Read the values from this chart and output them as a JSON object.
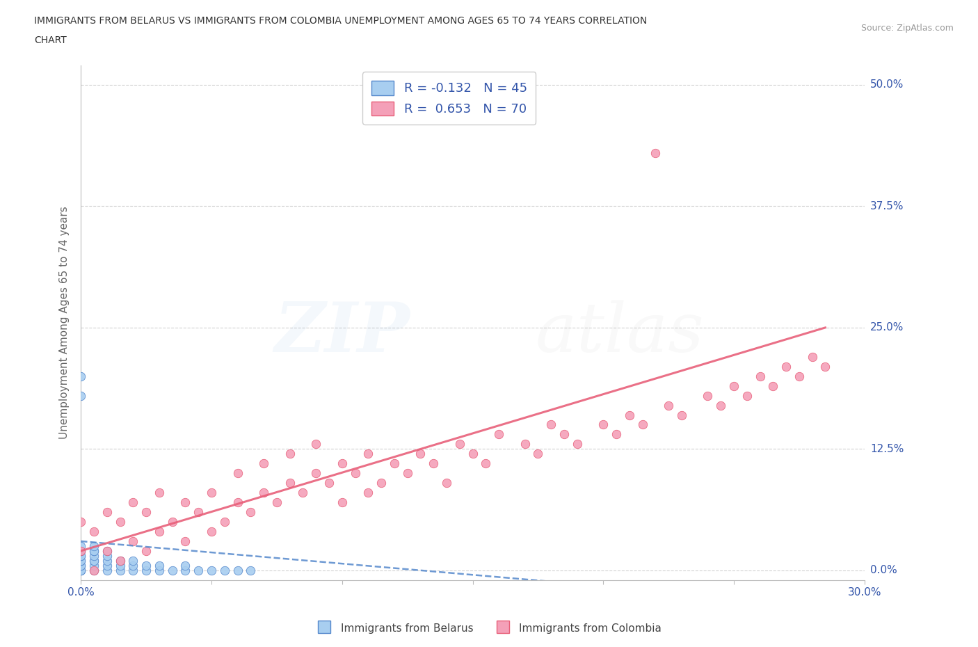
{
  "title_line1": "IMMIGRANTS FROM BELARUS VS IMMIGRANTS FROM COLOMBIA UNEMPLOYMENT AMONG AGES 65 TO 74 YEARS CORRELATION",
  "title_line2": "CHART",
  "source_text": "Source: ZipAtlas.com",
  "ylabel": "Unemployment Among Ages 65 to 74 years",
  "xlim": [
    0.0,
    0.3
  ],
  "ylim": [
    -0.01,
    0.52
  ],
  "ytick_labels": [
    "0.0%",
    "12.5%",
    "25.0%",
    "37.5%",
    "50.0%"
  ],
  "ytick_positions": [
    0.0,
    0.125,
    0.25,
    0.375,
    0.5
  ],
  "xtick_labels": [
    "0.0%",
    "",
    "",
    "",
    "",
    "",
    "30.0%"
  ],
  "xtick_positions": [
    0.0,
    0.05,
    0.1,
    0.15,
    0.2,
    0.25,
    0.3
  ],
  "grid_color": "#cccccc",
  "background_color": "#ffffff",
  "belarus_color": "#a8cef0",
  "colombia_color": "#f4a0b8",
  "belarus_line_color": "#5588cc",
  "colombia_line_color": "#e8607a",
  "R_belarus": -0.132,
  "N_belarus": 45,
  "R_colombia": 0.653,
  "N_colombia": 70,
  "legend_label_belarus": "Immigrants from Belarus",
  "legend_label_colombia": "Immigrants from Colombia",
  "stat_color": "#3355aa",
  "belarus_scatter_x": [
    0.0,
    0.0,
    0.0,
    0.0,
    0.0,
    0.0,
    0.0,
    0.0,
    0.0,
    0.0,
    0.0,
    0.0,
    0.0,
    0.0,
    0.005,
    0.005,
    0.005,
    0.005,
    0.005,
    0.005,
    0.005,
    0.005,
    0.01,
    0.01,
    0.01,
    0.01,
    0.01,
    0.015,
    0.015,
    0.015,
    0.02,
    0.02,
    0.02,
    0.025,
    0.025,
    0.03,
    0.03,
    0.035,
    0.04,
    0.04,
    0.045,
    0.05,
    0.055,
    0.06,
    0.065
  ],
  "belarus_scatter_y": [
    0.0,
    0.0,
    0.0,
    0.005,
    0.005,
    0.01,
    0.01,
    0.015,
    0.015,
    0.02,
    0.02,
    0.025,
    0.18,
    0.2,
    0.0,
    0.005,
    0.01,
    0.01,
    0.015,
    0.02,
    0.02,
    0.025,
    0.0,
    0.005,
    0.01,
    0.015,
    0.02,
    0.0,
    0.005,
    0.01,
    0.0,
    0.005,
    0.01,
    0.0,
    0.005,
    0.0,
    0.005,
    0.0,
    0.0,
    0.005,
    0.0,
    0.0,
    0.0,
    0.0,
    0.0
  ],
  "colombia_scatter_x": [
    0.0,
    0.0,
    0.005,
    0.005,
    0.01,
    0.01,
    0.015,
    0.015,
    0.02,
    0.02,
    0.025,
    0.025,
    0.03,
    0.03,
    0.035,
    0.04,
    0.04,
    0.045,
    0.05,
    0.05,
    0.055,
    0.06,
    0.06,
    0.065,
    0.07,
    0.07,
    0.075,
    0.08,
    0.08,
    0.085,
    0.09,
    0.09,
    0.095,
    0.1,
    0.1,
    0.105,
    0.11,
    0.11,
    0.115,
    0.12,
    0.125,
    0.13,
    0.135,
    0.14,
    0.145,
    0.15,
    0.155,
    0.16,
    0.17,
    0.175,
    0.18,
    0.185,
    0.19,
    0.2,
    0.205,
    0.21,
    0.215,
    0.22,
    0.225,
    0.23,
    0.24,
    0.245,
    0.25,
    0.255,
    0.26,
    0.265,
    0.27,
    0.275,
    0.28,
    0.285
  ],
  "colombia_scatter_y": [
    0.02,
    0.05,
    0.0,
    0.04,
    0.02,
    0.06,
    0.01,
    0.05,
    0.03,
    0.07,
    0.02,
    0.06,
    0.04,
    0.08,
    0.05,
    0.03,
    0.07,
    0.06,
    0.04,
    0.08,
    0.05,
    0.07,
    0.1,
    0.06,
    0.08,
    0.11,
    0.07,
    0.09,
    0.12,
    0.08,
    0.1,
    0.13,
    0.09,
    0.07,
    0.11,
    0.1,
    0.08,
    0.12,
    0.09,
    0.11,
    0.1,
    0.12,
    0.11,
    0.09,
    0.13,
    0.12,
    0.11,
    0.14,
    0.13,
    0.12,
    0.15,
    0.14,
    0.13,
    0.15,
    0.14,
    0.16,
    0.15,
    0.43,
    0.17,
    0.16,
    0.18,
    0.17,
    0.19,
    0.18,
    0.2,
    0.19,
    0.21,
    0.2,
    0.22,
    0.21
  ],
  "belarus_line_x": [
    0.0,
    0.065
  ],
  "belarus_line_y": [
    0.03,
    0.015
  ],
  "colombia_line_x": [
    0.0,
    0.285
  ],
  "colombia_line_y": [
    0.02,
    0.25
  ]
}
